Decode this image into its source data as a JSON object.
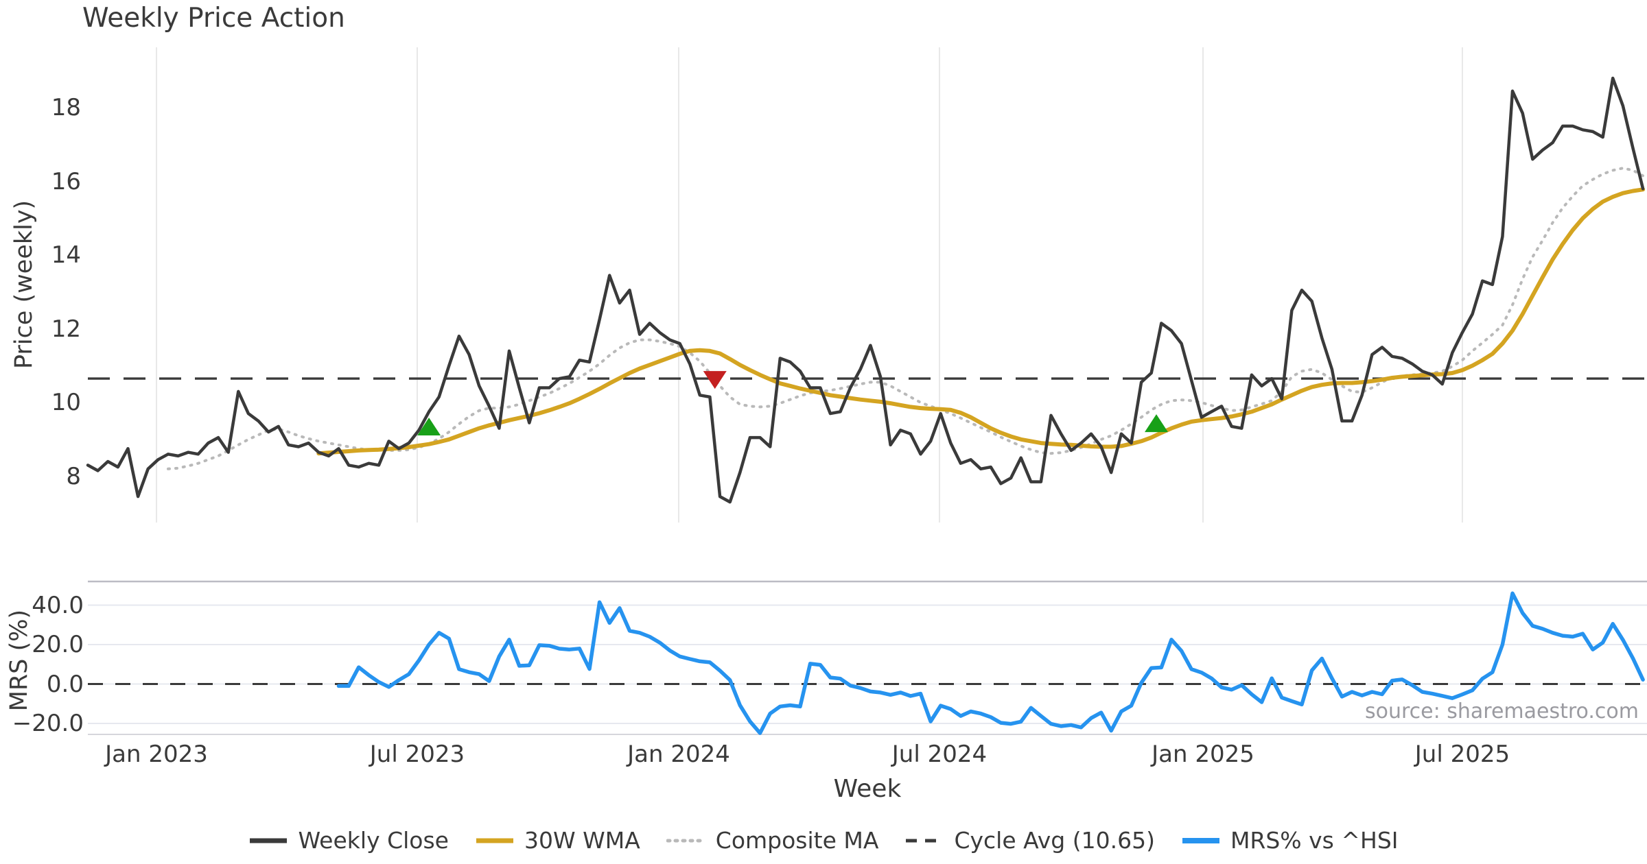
{
  "title": "Weekly Price Action",
  "source_text": "source: sharemaestro.com",
  "colors": {
    "weekly_close": "#3a3a3a",
    "wma30": "#d4a421",
    "composite": "#b9b9b9",
    "cycle_avg": "#3a3a3a",
    "mrs": "#2693ef",
    "buy_marker": "#18a018",
    "sell_marker": "#c42020",
    "grid_vertical": "#e8e8e8",
    "grid_horizontal": "#e6e8ef",
    "panel_border": "#bcbcc4",
    "tick_text": "#3a3a3a",
    "source_text_color": "#9a9aa0"
  },
  "x_axis": {
    "label": "Week",
    "start_week_date": "2022-11-13",
    "ticks": [
      {
        "label": "Jan 2023",
        "week": 6.84
      },
      {
        "label": "Jul 2023",
        "week": 32.83
      },
      {
        "label": "Jan 2024",
        "week": 58.89
      },
      {
        "label": "Jul 2024",
        "week": 84.88
      },
      {
        "label": "Jan 2025",
        "week": 111.15
      },
      {
        "label": "Jul 2025",
        "week": 137.0
      }
    ]
  },
  "legend": [
    {
      "label": "Weekly Close",
      "style": "solid",
      "color_key": "weekly_close"
    },
    {
      "label": "30W WMA",
      "style": "solid",
      "color_key": "wma30"
    },
    {
      "label": "Composite MA",
      "style": "dotted",
      "color_key": "composite"
    },
    {
      "label": "Cycle Avg (10.65)",
      "style": "dashed",
      "color_key": "cycle_avg"
    },
    {
      "label": "MRS% vs ^HSI",
      "style": "solid-thick",
      "color_key": "mrs"
    }
  ],
  "chart_data": [
    {
      "type": "line",
      "panel": "price",
      "ylabel": "Price (weekly)",
      "ylim": [
        6.73,
        19.63
      ],
      "y_ticks": [
        {
          "label": "8",
          "value": 8
        },
        {
          "label": "10",
          "value": 10
        },
        {
          "label": "12",
          "value": 12
        },
        {
          "label": "14",
          "value": 14
        },
        {
          "label": "16",
          "value": 16
        },
        {
          "label": "18",
          "value": 18
        }
      ],
      "cycle_avg": 10.65,
      "grid": "vertical",
      "series": [
        {
          "name": "Weekly Close",
          "color_key": "weekly_close",
          "style": "solid",
          "width": 4.5,
          "start_week": 0,
          "values": [
            8.3,
            8.15,
            8.4,
            8.25,
            8.75,
            7.45,
            8.2,
            8.45,
            8.6,
            8.55,
            8.65,
            8.6,
            8.9,
            9.05,
            8.65,
            10.3,
            9.7,
            9.5,
            9.2,
            9.35,
            8.85,
            8.8,
            8.9,
            8.65,
            8.55,
            8.75,
            8.3,
            8.25,
            8.35,
            8.3,
            8.95,
            8.75,
            8.9,
            9.25,
            9.75,
            10.15,
            11.0,
            11.8,
            11.3,
            10.45,
            9.9,
            9.3,
            11.4,
            10.4,
            9.45,
            10.4,
            10.4,
            10.65,
            10.7,
            11.15,
            11.1,
            12.25,
            13.45,
            12.7,
            13.05,
            11.85,
            12.15,
            11.9,
            11.7,
            11.6,
            11.05,
            10.2,
            10.15,
            7.45,
            7.3,
            8.1,
            9.05,
            9.05,
            8.8,
            11.2,
            11.1,
            10.85,
            10.4,
            10.4,
            9.7,
            9.75,
            10.4,
            10.9,
            11.55,
            10.7,
            8.85,
            9.25,
            9.15,
            8.6,
            8.95,
            9.7,
            8.9,
            8.35,
            8.45,
            8.2,
            8.25,
            7.8,
            7.95,
            8.5,
            7.85,
            7.85,
            9.65,
            9.15,
            8.7,
            8.9,
            9.15,
            8.8,
            8.1,
            9.15,
            8.9,
            10.55,
            10.8,
            12.15,
            11.95,
            11.6,
            10.6,
            9.6,
            9.75,
            9.9,
            9.35,
            9.3,
            10.75,
            10.45,
            10.65,
            10.1,
            12.5,
            13.05,
            12.75,
            11.75,
            10.9,
            9.5,
            9.5,
            10.2,
            11.3,
            11.5,
            11.25,
            11.2,
            11.05,
            10.85,
            10.75,
            10.5,
            11.35,
            11.9,
            12.4,
            13.3,
            13.2,
            14.5,
            18.45,
            17.85,
            16.6,
            16.85,
            17.05,
            17.5,
            17.5,
            17.4,
            17.35,
            17.2,
            18.8,
            18.05,
            16.9,
            15.8
          ]
        },
        {
          "name": "30W WMA",
          "color_key": "wma30",
          "style": "solid",
          "width": 6,
          "start_week": 23,
          "values": [
            8.62,
            8.64,
            8.66,
            8.68,
            8.7,
            8.71,
            8.72,
            8.74,
            8.76,
            8.79,
            8.83,
            8.87,
            8.93,
            9.0,
            9.1,
            9.2,
            9.3,
            9.38,
            9.45,
            9.52,
            9.58,
            9.64,
            9.71,
            9.79,
            9.88,
            9.98,
            10.1,
            10.23,
            10.37,
            10.52,
            10.66,
            10.8,
            10.92,
            11.02,
            11.12,
            11.22,
            11.32,
            11.4,
            11.42,
            11.4,
            11.33,
            11.18,
            11.02,
            10.88,
            10.75,
            10.63,
            10.52,
            10.45,
            10.38,
            10.32,
            10.26,
            10.2,
            10.16,
            10.12,
            10.08,
            10.05,
            10.02,
            9.98,
            9.93,
            9.88,
            9.85,
            9.83,
            9.82,
            9.8,
            9.72,
            9.6,
            9.45,
            9.3,
            9.18,
            9.08,
            9.0,
            8.95,
            8.9,
            8.88,
            8.86,
            8.85,
            8.83,
            8.81,
            8.8,
            8.8,
            8.82,
            8.88,
            8.95,
            9.05,
            9.18,
            9.3,
            9.4,
            9.48,
            9.52,
            9.55,
            9.58,
            9.62,
            9.68,
            9.75,
            9.85,
            9.95,
            10.08,
            10.2,
            10.32,
            10.42,
            10.48,
            10.52,
            10.53,
            10.53,
            10.55,
            10.58,
            10.62,
            10.67,
            10.7,
            10.72,
            10.74,
            10.76,
            10.77,
            10.8,
            10.88,
            11.0,
            11.15,
            11.32,
            11.6,
            11.95,
            12.4,
            12.9,
            13.4,
            13.88,
            14.3,
            14.68,
            15.0,
            15.25,
            15.45,
            15.58,
            15.68,
            15.74,
            15.78
          ]
        },
        {
          "name": "Composite MA",
          "color_key": "composite",
          "style": "dotted",
          "width": 4,
          "start_week": 8,
          "values": [
            8.2,
            8.22,
            8.28,
            8.35,
            8.45,
            8.55,
            8.7,
            8.85,
            9.0,
            9.12,
            9.25,
            9.28,
            9.2,
            9.1,
            9.02,
            8.95,
            8.9,
            8.85,
            8.8,
            8.75,
            8.72,
            8.7,
            8.7,
            8.7,
            8.72,
            8.78,
            8.88,
            9.02,
            9.2,
            9.42,
            9.62,
            9.78,
            9.85,
            9.85,
            9.88,
            9.95,
            10.05,
            10.15,
            10.25,
            10.38,
            10.52,
            10.68,
            10.85,
            11.05,
            11.28,
            11.48,
            11.62,
            11.7,
            11.7,
            11.66,
            11.6,
            11.52,
            11.35,
            11.12,
            10.8,
            10.45,
            10.15,
            9.95,
            9.9,
            9.88,
            9.9,
            9.98,
            10.08,
            10.18,
            10.26,
            10.3,
            10.33,
            10.38,
            10.44,
            10.5,
            10.55,
            10.55,
            10.45,
            10.3,
            10.15,
            10.0,
            9.9,
            9.8,
            9.7,
            9.58,
            9.45,
            9.32,
            9.2,
            9.06,
            8.94,
            8.82,
            8.72,
            8.64,
            8.62,
            8.64,
            8.7,
            8.78,
            8.88,
            9.0,
            9.1,
            9.25,
            9.42,
            9.6,
            9.8,
            9.95,
            10.05,
            10.07,
            10.05,
            10.0,
            9.92,
            9.85,
            9.78,
            9.8,
            9.88,
            9.96,
            10.05,
            10.3,
            10.7,
            10.85,
            10.9,
            10.8,
            10.62,
            10.45,
            10.3,
            10.28,
            10.4,
            10.55,
            10.68,
            10.72,
            10.75,
            10.78,
            10.8,
            10.85,
            10.98,
            11.15,
            11.4,
            11.62,
            11.85,
            12.1,
            12.65,
            13.35,
            13.95,
            14.4,
            14.88,
            15.28,
            15.6,
            15.88,
            16.05,
            16.2,
            16.3,
            16.36,
            16.3,
            16.15
          ]
        }
      ],
      "signals": {
        "buy": [
          {
            "week": 34.0,
            "y": 9.33
          },
          {
            "week": 106.5,
            "y": 9.42
          }
        ],
        "sell": [
          {
            "week": 62.5,
            "y": 10.63
          }
        ]
      }
    },
    {
      "type": "line",
      "panel": "mrs",
      "ylabel": "MRS (%)",
      "ylim": [
        -25.6,
        52.0
      ],
      "y_ticks": [
        {
          "label": "40.0",
          "value": 40
        },
        {
          "label": "20.0",
          "value": 20
        },
        {
          "label": "0.0",
          "value": 0
        },
        {
          "label": "−20.0",
          "value": -20
        }
      ],
      "zero_line": 0,
      "grid": "horizontal",
      "series": [
        {
          "name": "MRS% vs ^HSI",
          "color_key": "mrs",
          "style": "solid",
          "width": 5.5,
          "start_week": 25,
          "values": [
            -1,
            -1,
            8.5,
            4.5,
            1,
            -1.5,
            2,
            5,
            12,
            20,
            26,
            23,
            7.5,
            6,
            5,
            1.5,
            14,
            22.5,
            9.2,
            9.5,
            19.7,
            19.4,
            17.9,
            17.5,
            18,
            7.6,
            41.5,
            31,
            38.5,
            27,
            26,
            24,
            21,
            17,
            14,
            12.7,
            11.5,
            11,
            6.8,
            2,
            -10.8,
            -19,
            -24.9,
            -15,
            -11.4,
            -10.8,
            -11.4,
            10.3,
            9.7,
            3.3,
            2.7,
            -0.8,
            -2,
            -3.8,
            -4.3,
            -5.5,
            -4.3,
            -6.1,
            -4.9,
            -19,
            -11,
            -12.7,
            -16.2,
            -13.9,
            -15,
            -16.8,
            -19.7,
            -20.2,
            -19.1,
            -12.1,
            -16.2,
            -20.2,
            -21.4,
            -20.8,
            -22,
            -17.3,
            -14.5,
            -23.7,
            -13.9,
            -11,
            0.6,
            8.1,
            8.4,
            22.5,
            16.8,
            7.5,
            5.8,
            2.9,
            -1.7,
            -2.9,
            -0.6,
            -5.2,
            -9.2,
            2.9,
            -6.9,
            -8.7,
            -10.4,
            6.9,
            12.9,
            2.9,
            -6.4,
            -4,
            -5.8,
            -4,
            -5.2,
            1.7,
            2.3,
            -0.6,
            -4,
            -4.9,
            -6,
            -7.2,
            -5.3,
            -3.2,
            2.7,
            6,
            20,
            46,
            36,
            29.5,
            28,
            26,
            24.5,
            24,
            25.5,
            17.5,
            21,
            30.5,
            22.4,
            13,
            2.2
          ]
        }
      ]
    }
  ]
}
